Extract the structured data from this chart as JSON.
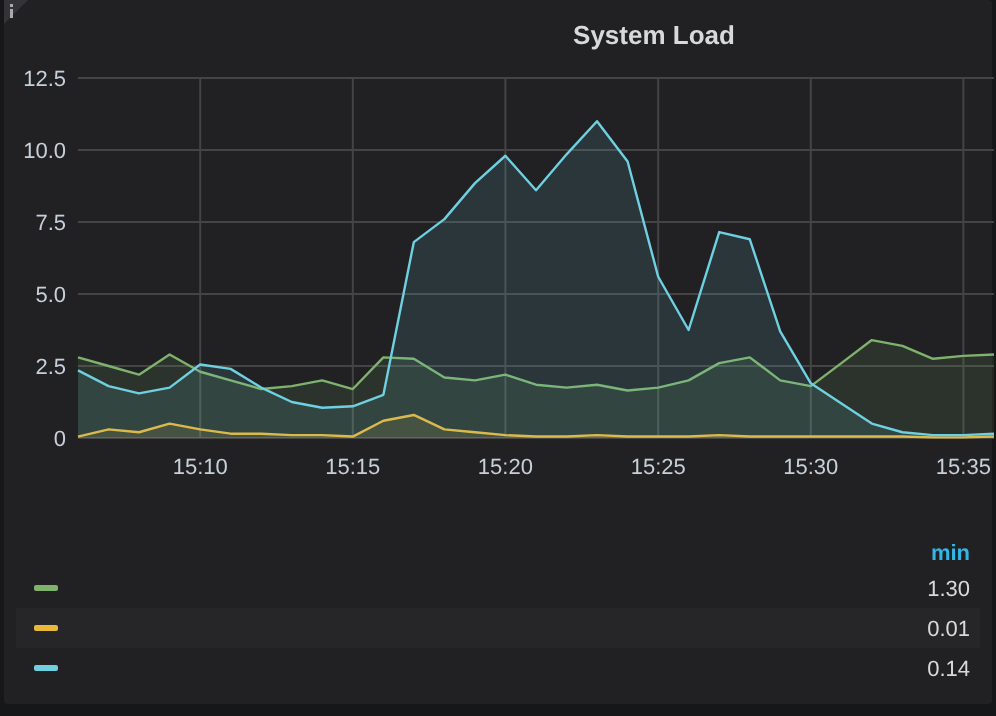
{
  "chart_data": {
    "type": "area",
    "title": "System Load",
    "x": [
      15.1,
      15.1167,
      15.1333,
      15.15,
      15.1667,
      15.1833,
      15.2,
      15.2167,
      15.2333,
      15.25,
      15.2667,
      15.2833,
      15.3,
      15.3167,
      15.3333,
      15.35,
      15.3667,
      15.3833,
      15.4,
      15.4167,
      15.4333,
      15.45,
      15.4667,
      15.4833,
      15.5,
      15.5167,
      15.5333,
      15.55,
      15.5667,
      15.5833,
      15.6
    ],
    "series": [
      {
        "color": "#7eb26d",
        "values": [
          2.8,
          2.5,
          2.2,
          2.9,
          2.3,
          2.0,
          1.7,
          1.8,
          2.0,
          1.7,
          2.8,
          2.75,
          2.1,
          2.0,
          2.2,
          1.85,
          1.75,
          1.85,
          1.65,
          1.75,
          2.0,
          2.6,
          2.8,
          2.0,
          1.8,
          2.6,
          3.4,
          3.2,
          2.75,
          2.85,
          2.9
        ]
      },
      {
        "color": "#eab839",
        "values": [
          0.05,
          0.3,
          0.2,
          0.5,
          0.3,
          0.15,
          0.15,
          0.1,
          0.1,
          0.05,
          0.6,
          0.8,
          0.3,
          0.2,
          0.1,
          0.05,
          0.05,
          0.1,
          0.05,
          0.05,
          0.05,
          0.1,
          0.05,
          0.05,
          0.05,
          0.05,
          0.05,
          0.05,
          0.02,
          0.02,
          0.05
        ]
      },
      {
        "color": "#6ed0e0",
        "values": [
          2.35,
          1.8,
          1.55,
          1.75,
          2.55,
          2.4,
          1.75,
          1.25,
          1.05,
          1.1,
          1.5,
          6.8,
          7.6,
          8.85,
          9.8,
          8.6,
          9.85,
          11.0,
          9.6,
          5.6,
          3.75,
          7.15,
          6.9,
          3.7,
          1.9,
          1.2,
          0.5,
          0.2,
          0.1,
          0.1,
          0.15
        ]
      }
    ],
    "xlim": [
      15.1,
      15.6
    ],
    "xticks": [
      {
        "value": 15.1667,
        "label": "15:10"
      },
      {
        "value": 15.25,
        "label": "15:15"
      },
      {
        "value": 15.3333,
        "label": "15:20"
      },
      {
        "value": 15.4167,
        "label": "15:25"
      },
      {
        "value": 15.5,
        "label": "15:30"
      },
      {
        "value": 15.5833,
        "label": "15:35"
      }
    ],
    "ylim": [
      0,
      12.5
    ],
    "yticks": [
      {
        "value": 0,
        "label": "0"
      },
      {
        "value": 2.5,
        "label": "2.5"
      },
      {
        "value": 5,
        "label": "5.0"
      },
      {
        "value": 7.5,
        "label": "7.5"
      },
      {
        "value": 10,
        "label": "10.0"
      },
      {
        "value": 12.5,
        "label": "12.5"
      }
    ],
    "grid": true,
    "annotations": [
      "min",
      "1.30",
      "0.01",
      "0.14"
    ]
  }
}
